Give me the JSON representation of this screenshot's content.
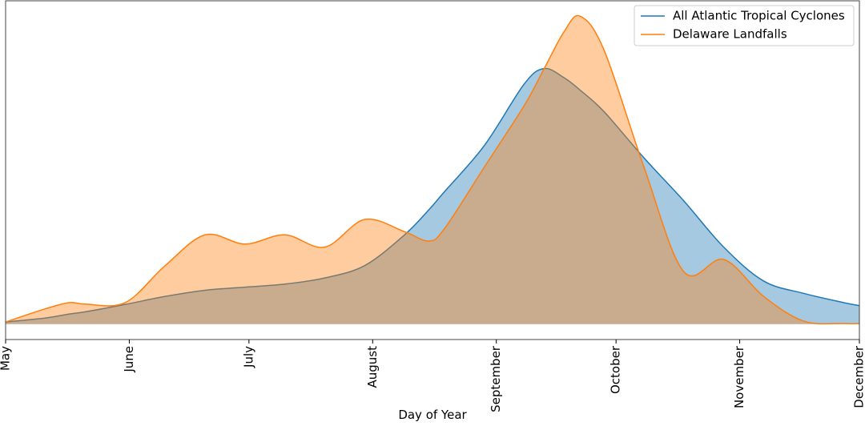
{
  "chart_data": {
    "type": "area",
    "x_label": "Day of Year",
    "x": [
      121,
      131,
      137,
      141,
      151,
      161,
      171,
      181,
      191,
      201,
      211,
      221,
      227,
      231,
      241,
      251,
      256,
      261,
      265,
      271,
      281,
      291,
      301,
      311,
      321,
      331,
      335
    ],
    "series": [
      {
        "name": "All Atlantic Tropical Cyclones",
        "color": "#1f77b4",
        "values": [
          7e-05,
          0.0002,
          0.00033,
          0.0004,
          0.00064,
          0.0009,
          0.0011,
          0.0012,
          0.0013,
          0.0015,
          0.0019,
          0.0029,
          0.0037,
          0.0043,
          0.0058,
          0.0078,
          0.0083,
          0.008,
          0.0076,
          0.0069,
          0.0054,
          0.004,
          0.0025,
          0.0014,
          0.001,
          0.0007,
          0.0006
        ]
      },
      {
        "name": "Delaware Landfalls",
        "color": "#ff7f0e",
        "values": [
          7e-05,
          0.0005,
          0.0007,
          0.00065,
          0.0007,
          0.0019,
          0.0029,
          0.0026,
          0.0029,
          0.0025,
          0.0034,
          0.003,
          0.0027,
          0.0031,
          0.0051,
          0.0071,
          0.0083,
          0.0095,
          0.01,
          0.0089,
          0.0051,
          0.0017,
          0.0021,
          0.0009,
          0.0001,
          2e-05,
          2e-05
        ]
      }
    ],
    "xlim": [
      121,
      335
    ],
    "ylim": [
      -0.0005,
      0.0105
    ],
    "xticks": [
      {
        "value": 121,
        "label": "May"
      },
      {
        "value": 152,
        "label": "June"
      },
      {
        "value": 182,
        "label": "July"
      },
      {
        "value": 213,
        "label": "August"
      },
      {
        "value": 244,
        "label": "September"
      },
      {
        "value": 274,
        "label": "October"
      },
      {
        "value": 305,
        "label": "November"
      },
      {
        "value": 335,
        "label": "December"
      }
    ],
    "legend": "upper right"
  }
}
